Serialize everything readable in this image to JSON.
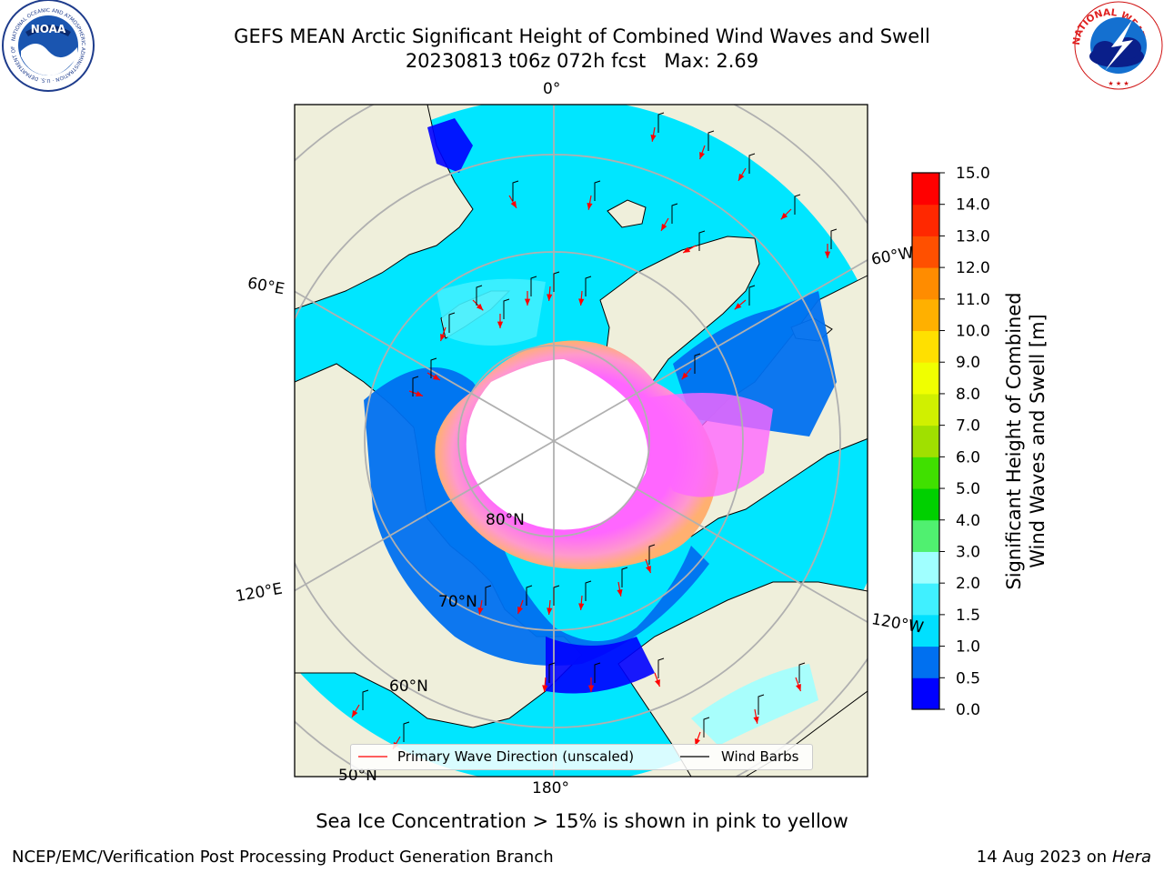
{
  "header": {
    "title_line1": "GEFS MEAN Arctic Significant Height of Combined Wind Waves and Swell",
    "title_line2": "20230813 t06z 072h fcst   Max: 2.69"
  },
  "logos": {
    "left": {
      "name": "NOAA",
      "ring_text": "NATIONAL OCEANIC AND ATMOSPHERIC ADMINISTRATION · U.S. DEPARTMENT OF COMMERCE"
    },
    "right": {
      "name": "NATIONAL WEATHER SERVICE"
    }
  },
  "map": {
    "longitude_labels": {
      "top": "0°",
      "bottom": "180°",
      "left_upper": "60°E",
      "left_lower": "120°E",
      "right_upper": "60°W",
      "right_lower": "120°W"
    },
    "latitude_labels": [
      "80°N",
      "70°N",
      "60°N",
      "50°N"
    ],
    "colors": {
      "land": "#efefdb",
      "ice_hole": "#ffffff",
      "grid": "#b0b0b0",
      "arrow": "#ff0000"
    }
  },
  "colorbar": {
    "title_line1": "Significant Height of Combined",
    "title_line2": "Wind Waves and Swell [m]",
    "ticks": [
      "0.0",
      "0.5",
      "1.0",
      "1.5",
      "2.0",
      "3.0",
      "4.0",
      "5.0",
      "6.0",
      "7.0",
      "8.0",
      "9.0",
      "10.0",
      "11.0",
      "12.0",
      "13.0",
      "14.0",
      "15.0"
    ],
    "colors": [
      "#0000ff",
      "#0070f0",
      "#00e0ff",
      "#40f0ff",
      "#a0ffff",
      "#50f070",
      "#00d000",
      "#40e000",
      "#a0e000",
      "#d0f000",
      "#f0ff00",
      "#ffe000",
      "#ffb000",
      "#ff8c00",
      "#ff5000",
      "#ff2800",
      "#ff0000"
    ]
  },
  "legend": {
    "primary_wave": "Primary Wave Direction (unscaled)",
    "wind_barbs": "Wind Barbs",
    "primary_color": "#ff0000",
    "barb_color": "#000000"
  },
  "caption": "Sea Ice Concentration > 15% is shown in pink to yellow",
  "footer": {
    "left": "NCEP/EMC/Verification Post Processing Product Generation Branch",
    "right_prefix": "14 Aug 2023 on",
    "right_italic": "Hera"
  }
}
